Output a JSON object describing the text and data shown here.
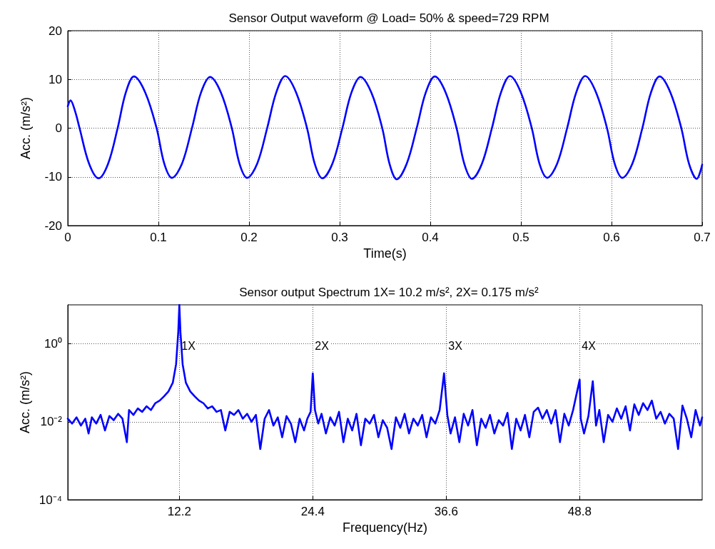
{
  "chart_data": [
    {
      "type": "line",
      "title": "Sensor Output waveform @ Load= 50% & speed=729 RPM",
      "xlabel": "Time(s)",
      "ylabel": "Acc. (m/s²)",
      "color": "#0000ff",
      "line_style": "solid",
      "marker": "none",
      "grid": true,
      "x": [
        0,
        0.003,
        0.008,
        0.013,
        0.0235,
        0.034,
        0.0445,
        0.055,
        0.064,
        0.073,
        0.0855,
        0.098,
        0.1065,
        0.115,
        0.126,
        0.137,
        0.147,
        0.157,
        0.169,
        0.181,
        0.1895,
        0.198,
        0.209,
        0.22,
        0.23,
        0.24,
        0.252,
        0.264,
        0.2725,
        0.281,
        0.292,
        0.303,
        0.313,
        0.323,
        0.335,
        0.347,
        0.355,
        0.363,
        0.374,
        0.385,
        0.395,
        0.405,
        0.417,
        0.429,
        0.4375,
        0.446,
        0.457,
        0.468,
        0.478,
        0.488,
        0.5,
        0.512,
        0.5205,
        0.529,
        0.54,
        0.551,
        0.561,
        0.571,
        0.583,
        0.595,
        0.6035,
        0.612,
        0.623,
        0.634,
        0.6435,
        0.653,
        0.665,
        0.677,
        0.6855,
        0.694,
        0.7
      ],
      "values": [
        4.5,
        5.7,
        3.5,
        0,
        -7.3,
        -10.3,
        -7.3,
        0,
        7.3,
        10.6,
        7.3,
        0,
        -7.3,
        -10.2,
        -7.3,
        0,
        7.3,
        10.5,
        7.3,
        0,
        -7.3,
        -10.2,
        -7.3,
        0,
        7.3,
        10.7,
        7.3,
        0,
        -7.3,
        -10.3,
        -7.3,
        0,
        7.3,
        10.5,
        7.3,
        0,
        -7.3,
        -10.5,
        -7.3,
        0,
        7.3,
        10.6,
        7.3,
        0,
        -7.3,
        -10.4,
        -7.3,
        0,
        7.3,
        10.7,
        7.3,
        0,
        -7.3,
        -10.2,
        -7.3,
        0,
        7.3,
        10.7,
        7.3,
        0,
        -7.3,
        -10.2,
        -7.3,
        0,
        7.3,
        10.6,
        7.3,
        0,
        -7.3,
        -10.4,
        -7.5
      ],
      "xlim": [
        0,
        0.7
      ],
      "xticks": [
        0,
        0.1,
        0.2,
        0.3,
        0.4,
        0.5,
        0.6,
        0.7
      ],
      "ylim": [
        -20,
        20
      ],
      "yticks": [
        -20,
        -10,
        0,
        10,
        20
      ]
    },
    {
      "type": "line",
      "title": "Sensor output Spectrum 1X= 10.2 m/s², 2X= 0.175 m/s²",
      "xlabel": "Frequency(Hz)",
      "ylabel": "Acc. (m/s²)",
      "color": "#0000ff",
      "line_style": "solid",
      "marker": "none",
      "grid": true,
      "log": "y",
      "x": [
        2.0,
        2.4,
        2.8,
        3.2,
        3.6,
        3.9,
        4.2,
        4.6,
        5.0,
        5.4,
        5.8,
        6.2,
        6.6,
        7.0,
        7.4,
        7.6,
        8.0,
        8.4,
        8.8,
        9.2,
        9.6,
        10.0,
        10.4,
        10.8,
        11.2,
        11.6,
        11.9,
        12.1,
        12.2,
        12.3,
        12.5,
        12.8,
        13.2,
        13.6,
        14.0,
        14.4,
        14.8,
        15.2,
        15.6,
        16.0,
        16.4,
        16.8,
        17.2,
        17.6,
        18.0,
        18.4,
        18.8,
        19.2,
        19.6,
        20.0,
        20.4,
        20.8,
        21.2,
        21.6,
        22.0,
        22.4,
        22.8,
        23.2,
        23.6,
        23.9,
        24.2,
        24.4,
        24.6,
        24.9,
        25.2,
        25.6,
        26.0,
        26.4,
        26.8,
        27.2,
        27.6,
        28.0,
        28.4,
        28.8,
        29.2,
        29.6,
        30.0,
        30.4,
        30.8,
        31.2,
        31.6,
        32.0,
        32.4,
        32.8,
        33.2,
        33.6,
        34.0,
        34.4,
        34.8,
        35.2,
        35.6,
        36.0,
        36.4,
        36.7,
        37.0,
        37.4,
        37.8,
        38.2,
        38.6,
        39.0,
        39.4,
        39.8,
        40.2,
        40.6,
        41.0,
        41.4,
        41.8,
        42.2,
        42.6,
        43.0,
        43.4,
        43.8,
        44.2,
        44.6,
        45.0,
        45.4,
        45.8,
        46.2,
        46.6,
        47.0,
        47.4,
        47.8,
        48.2,
        48.8,
        48.9,
        49.2,
        49.6,
        50.0,
        50.3,
        50.6,
        51.0,
        51.4,
        51.8,
        52.2,
        52.6,
        53.0,
        53.4,
        53.8,
        54.2,
        54.6,
        55.0,
        55.4,
        55.8,
        56.2,
        56.6,
        57.0,
        57.4,
        57.8,
        58.2,
        58.6,
        59.0,
        59.4,
        59.8,
        60.0
      ],
      "values": [
        0.012,
        0.009,
        0.013,
        0.008,
        0.012,
        0.005,
        0.013,
        0.009,
        0.015,
        0.006,
        0.014,
        0.011,
        0.016,
        0.012,
        0.003,
        0.02,
        0.015,
        0.022,
        0.018,
        0.025,
        0.02,
        0.03,
        0.035,
        0.045,
        0.06,
        0.1,
        0.3,
        2,
        10,
        2,
        0.3,
        0.1,
        0.06,
        0.045,
        0.035,
        0.03,
        0.022,
        0.025,
        0.018,
        0.02,
        0.006,
        0.018,
        0.015,
        0.02,
        0.012,
        0.016,
        0.01,
        0.015,
        0.002,
        0.012,
        0.02,
        0.008,
        0.013,
        0.004,
        0.014,
        0.009,
        0.003,
        0.012,
        0.006,
        0.012,
        0.018,
        0.175,
        0.02,
        0.009,
        0.016,
        0.005,
        0.013,
        0.008,
        0.018,
        0.003,
        0.012,
        0.006,
        0.016,
        0.0025,
        0.012,
        0.009,
        0.015,
        0.004,
        0.011,
        0.007,
        0.002,
        0.013,
        0.007,
        0.016,
        0.005,
        0.012,
        0.008,
        0.015,
        0.004,
        0.013,
        0.009,
        0.02,
        0.175,
        0.015,
        0.005,
        0.013,
        0.003,
        0.016,
        0.008,
        0.02,
        0.0025,
        0.012,
        0.007,
        0.015,
        0.005,
        0.011,
        0.008,
        0.017,
        0.002,
        0.012,
        0.006,
        0.015,
        0.004,
        0.018,
        0.023,
        0.012,
        0.02,
        0.009,
        0.02,
        0.003,
        0.016,
        0.008,
        0.02,
        0.12,
        0.012,
        0.005,
        0.014,
        0.11,
        0.008,
        0.02,
        0.003,
        0.015,
        0.01,
        0.022,
        0.012,
        0.025,
        0.006,
        0.028,
        0.015,
        0.03,
        0.02,
        0.035,
        0.012,
        0.018,
        0.009,
        0.016,
        0.012,
        0.002,
        0.026,
        0.012,
        0.004,
        0.02,
        0.008,
        0.013
      ],
      "xlim": [
        2,
        60
      ],
      "xticks": [
        12.2,
        24.4,
        36.6,
        48.8
      ],
      "ylim": [
        0.0001,
        10
      ],
      "yticks": [
        {
          "value": 0.0001,
          "label": "10⁻⁴"
        },
        {
          "value": 0.01,
          "label": "10⁻²"
        },
        {
          "value": 1,
          "label": "10⁰"
        }
      ],
      "annotations": [
        "1X",
        "2X",
        "3X",
        "4X"
      ]
    }
  ]
}
